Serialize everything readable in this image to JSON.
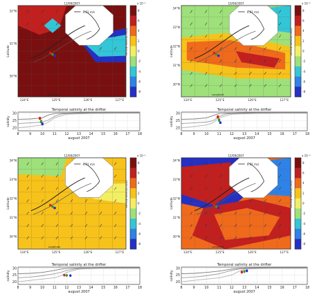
{
  "figure": {
    "panels": [
      {
        "id": "a",
        "map": {
          "date": "11/08/2007",
          "scale_arrow": "0.01 m/s",
          "lon_ticks": [
            "124°E",
            "125°E",
            "126°E",
            "127°E"
          ],
          "lat_ticks": [
            "32°N",
            "31°N",
            "30°N"
          ],
          "xlabel": "Longitude",
          "ylabel": "Latitude",
          "colorbar": {
            "ticks": [
              "8",
              "6",
              "4",
              "2",
              "0",
              "-2",
              "-4",
              "-6",
              "-8"
            ],
            "exponent": "x 10⁻³",
            "label": "vertical velocity (m/s)"
          }
        },
        "salinity": {
          "title": "Temporal salinity at the drifter",
          "ylabel": "salinity",
          "xlabel": "august 2007",
          "y_ticks": [
            "30",
            "25",
            "20"
          ],
          "x_ticks": [
            "8",
            "9",
            "10",
            "11",
            "12",
            "13",
            "14",
            "15",
            "16",
            "17",
            "18"
          ]
        }
      },
      {
        "id": "b",
        "map": {
          "date": "10/08/2007",
          "scale_arrow": "0.01 m/s",
          "lon_ticks": [
            "124°E",
            "125°E",
            "126°E",
            "127°E"
          ],
          "lat_ticks": [
            "34°N",
            "33°N",
            "32°N",
            "31°N",
            "30°N"
          ],
          "xlabel": "Longitude",
          "ylabel": "Latitude",
          "colorbar": {
            "ticks": [
              "8",
              "6",
              "4",
              "2",
              "0",
              "-2",
              "-4",
              "-6",
              "-8"
            ],
            "exponent": "x 10⁻³",
            "label": "vertical velocity (m/s)"
          }
        },
        "salinity": {
          "title": "Temporal salinity at the drifter",
          "ylabel": "salinity",
          "xlabel": "august 2007",
          "y_ticks": [
            "30",
            "25",
            "20"
          ],
          "x_ticks": [
            "8",
            "9",
            "10",
            "11",
            "12",
            "13",
            "14",
            "15",
            "16",
            "17",
            "18"
          ]
        }
      },
      {
        "id": "c",
        "map": {
          "date": "12/08/2007",
          "scale_arrow": "0.01 m/s",
          "lon_ticks": [
            "124°E",
            "125°E",
            "126°E",
            "127°E"
          ],
          "lat_ticks": [
            "34°N",
            "33°N",
            "32°N",
            "31°N",
            "30°N"
          ],
          "xlabel": "Longitude",
          "ylabel": "Latitude",
          "colorbar": {
            "ticks": [
              "8",
              "6",
              "4",
              "2",
              "0",
              "-2",
              "-4",
              "-6",
              "-8"
            ],
            "exponent": "x 10⁻³",
            "label": "vertical velocity (m/s)"
          }
        },
        "salinity": {
          "title": "Temporal salinity at the drifter",
          "ylabel": "salinity",
          "xlabel": "august 2007",
          "y_ticks": [
            "30",
            "25",
            "20"
          ],
          "x_ticks": [
            "8",
            "9",
            "10",
            "11",
            "12",
            "13",
            "14",
            "15",
            "16",
            "17",
            "18"
          ]
        }
      },
      {
        "id": "d",
        "map": {
          "date": "12/08/2007",
          "scale_arrow": "0.01 m/s",
          "lon_ticks": [
            "124°E",
            "125°E",
            "126°E",
            "127°E"
          ],
          "lat_ticks": [
            "34°N",
            "33°N",
            "32°N",
            "31°N",
            "30°N"
          ],
          "xlabel": "Longitude",
          "ylabel": "Latitude",
          "colorbar": {
            "ticks": [
              "8",
              "6",
              "4",
              "2",
              "0",
              "-2",
              "-4",
              "-6",
              "-8"
            ],
            "exponent": "x 10⁻³",
            "label": "vertical velocity (m/s)"
          }
        },
        "salinity": {
          "title": "Temporal salinity at the drifter",
          "ylabel": "salinity",
          "xlabel": "august 2007",
          "y_ticks": [
            "30",
            "25",
            "20"
          ],
          "x_ticks": [
            "8",
            "9",
            "10",
            "11",
            "12",
            "13",
            "14",
            "15",
            "16",
            "17",
            "18"
          ]
        }
      }
    ]
  },
  "chart_data": [
    {
      "type": "heatmap",
      "panel": "a",
      "title": "11/08/2007",
      "xlabel": "Longitude",
      "ylabel": "Latitude",
      "variable": "vertical velocity (m/s)",
      "colorbar_range": [
        -0.008,
        0.008
      ],
      "dominant_value": 0.008,
      "vector_scale": "0.01 m/s"
    },
    {
      "type": "line",
      "panel": "a",
      "title": "Temporal salinity at the drifter",
      "xlabel": "august 2007",
      "ylabel": "salinity",
      "xlim": [
        8,
        18
      ],
      "ylim": [
        18,
        31
      ],
      "series": [
        {
          "x": [
            8,
            9,
            10,
            10.5,
            11,
            11.5,
            12,
            13,
            14,
            15,
            16,
            17,
            18
          ],
          "values": [
            26,
            26.2,
            27,
            29,
            30,
            30.2,
            30.3,
            30.5,
            30.5,
            30.6,
            30.6,
            30.6,
            30.6
          ]
        },
        {
          "x": [
            8,
            9,
            10,
            10.5,
            11,
            11.5,
            12,
            13,
            14,
            15,
            16,
            17,
            18
          ],
          "values": [
            23,
            23.5,
            24,
            25.5,
            28,
            29.5,
            30,
            30.2,
            30.3,
            30.4,
            30.4,
            30.4,
            30.4
          ]
        },
        {
          "x": [
            8,
            9,
            10,
            10.5,
            11,
            12,
            13,
            14,
            15,
            16,
            17,
            18
          ],
          "values": [
            20,
            21,
            22,
            24,
            27,
            29.5,
            29.8,
            30,
            30.1,
            30.2,
            30.2,
            30.2
          ]
        }
      ],
      "highlight_points": [
        {
          "x": 9.8,
          "values": [
            26.3,
            26.5,
            26.8,
            27
          ]
        },
        {
          "x": 9.9,
          "values": [
            24,
            24.4,
            24.8
          ]
        },
        {
          "x": 10,
          "values": [
            22.5,
            22.8,
            23
          ]
        }
      ]
    },
    {
      "type": "heatmap",
      "panel": "b",
      "title": "10/08/2007",
      "xlabel": "Longitude",
      "ylabel": "Latitude",
      "variable": "vertical velocity (m/s)",
      "colorbar_range": [
        -0.008,
        0.008
      ],
      "dominant_value": -0.002,
      "vector_scale": "0.01 m/s"
    },
    {
      "type": "line",
      "panel": "b",
      "title": "Temporal salinity at the drifter",
      "xlabel": "august 2007",
      "ylabel": "salinity",
      "xlim": [
        8,
        18
      ],
      "ylim": [
        18,
        31
      ],
      "series": [
        {
          "x": [
            8,
            9,
            10,
            10.5,
            11,
            11.5,
            12,
            13,
            14,
            15,
            16,
            17,
            18
          ],
          "values": [
            26,
            26.2,
            27,
            28.5,
            30,
            30.2,
            30.3,
            30.5,
            30.5,
            30.6,
            30.6,
            30.6,
            30.6
          ]
        },
        {
          "x": [
            8,
            9,
            10,
            10.5,
            11,
            11.5,
            12,
            13,
            14,
            15,
            16,
            17,
            18
          ],
          "values": [
            23,
            23.5,
            24,
            25,
            28,
            29.5,
            30,
            30.2,
            30.3,
            30.4,
            30.4,
            30.4,
            30.4
          ]
        },
        {
          "x": [
            8,
            9,
            10,
            10.5,
            11,
            12,
            13,
            14,
            15,
            16,
            17,
            18
          ],
          "values": [
            20,
            21,
            22,
            23.5,
            27,
            29.5,
            29.8,
            30,
            30.1,
            30.2,
            30.2,
            30.2
          ]
        }
      ],
      "highlight_points": [
        {
          "x": 10.9,
          "values": [
            27.3,
            27.7,
            28
          ]
        },
        {
          "x": 11,
          "values": [
            25,
            25.4,
            25.8
          ]
        },
        {
          "x": 11.1,
          "values": [
            23.5,
            23.8
          ]
        }
      ]
    },
    {
      "type": "heatmap",
      "panel": "c",
      "title": "12/08/2007",
      "xlabel": "Longitude",
      "ylabel": "Latitude",
      "variable": "vertical velocity (m/s)",
      "colorbar_range": [
        -0.008,
        0.008
      ],
      "dominant_value": 0.002,
      "vector_scale": "0.01 m/s"
    },
    {
      "type": "line",
      "panel": "c",
      "title": "Temporal salinity at the drifter",
      "xlabel": "august 2007",
      "ylabel": "salinity",
      "xlim": [
        8,
        18
      ],
      "ylim": [
        18,
        31
      ],
      "series": [
        {
          "x": [
            8,
            9,
            10,
            11,
            11.5,
            12,
            13,
            14,
            15,
            16,
            17,
            18
          ],
          "values": [
            26,
            26.3,
            27,
            28.5,
            29.5,
            30,
            30.3,
            30.4,
            30.5,
            30.5,
            30.5,
            30.5
          ]
        },
        {
          "x": [
            8,
            9,
            10,
            11,
            11.5,
            12,
            13,
            14,
            15,
            16,
            17,
            18
          ],
          "values": [
            23,
            23.5,
            24.5,
            26,
            27,
            28.5,
            30,
            30.2,
            30.3,
            30.3,
            30.3,
            30.3
          ]
        },
        {
          "x": [
            8,
            9,
            10,
            11,
            11.5,
            12,
            13,
            14,
            15,
            16,
            17,
            18
          ],
          "values": [
            20,
            21,
            22,
            23,
            24.5,
            27,
            29.5,
            29.8,
            30,
            30,
            30,
            30
          ]
        }
      ],
      "highlight_points": [
        {
          "x": 11.8,
          "values": [
            24.8,
            25
          ]
        },
        {
          "x": 12,
          "values": [
            24.6,
            25
          ]
        },
        {
          "x": 12.3,
          "values": [
            24.5,
            24.8
          ]
        }
      ]
    },
    {
      "type": "heatmap",
      "panel": "d",
      "title": "12/08/2007",
      "xlabel": "Longitude",
      "ylabel": "Latitude",
      "variable": "vertical velocity (m/s)",
      "colorbar_range": [
        -0.008,
        0.008
      ],
      "dominant_value": 0.004,
      "vector_scale": "0.01 m/s"
    },
    {
      "type": "line",
      "panel": "d",
      "title": "Temporal salinity at the drifter",
      "xlabel": "august 2007",
      "ylabel": "salinity",
      "xlim": [
        8,
        18
      ],
      "ylim": [
        18,
        31
      ],
      "series": [
        {
          "x": [
            8,
            9,
            10,
            11,
            12,
            12.5,
            13,
            14,
            15,
            16,
            17,
            18
          ],
          "values": [
            26,
            26.3,
            27,
            28,
            29.5,
            30,
            30.3,
            30.5,
            30.5,
            30.6,
            30.6,
            30.6
          ]
        },
        {
          "x": [
            8,
            9,
            10,
            11,
            12,
            12.5,
            13,
            14,
            15,
            16,
            17,
            18
          ],
          "values": [
            23,
            23.5,
            24.5,
            26,
            28.5,
            29.5,
            30,
            30.2,
            30.3,
            30.3,
            30.3,
            30.3
          ]
        },
        {
          "x": [
            8,
            9,
            10,
            11,
            12,
            12.5,
            13,
            14,
            15,
            16,
            17,
            18
          ],
          "values": [
            20,
            21,
            22,
            23,
            25,
            27.5,
            29.5,
            29.8,
            30,
            30,
            30,
            30
          ]
        }
      ],
      "highlight_points": [
        {
          "x": 12.8,
          "values": [
            27,
            27.5
          ]
        },
        {
          "x": 13,
          "values": [
            27.5,
            28
          ]
        },
        {
          "x": 13.2,
          "values": [
            28,
            28.4
          ]
        }
      ]
    }
  ]
}
